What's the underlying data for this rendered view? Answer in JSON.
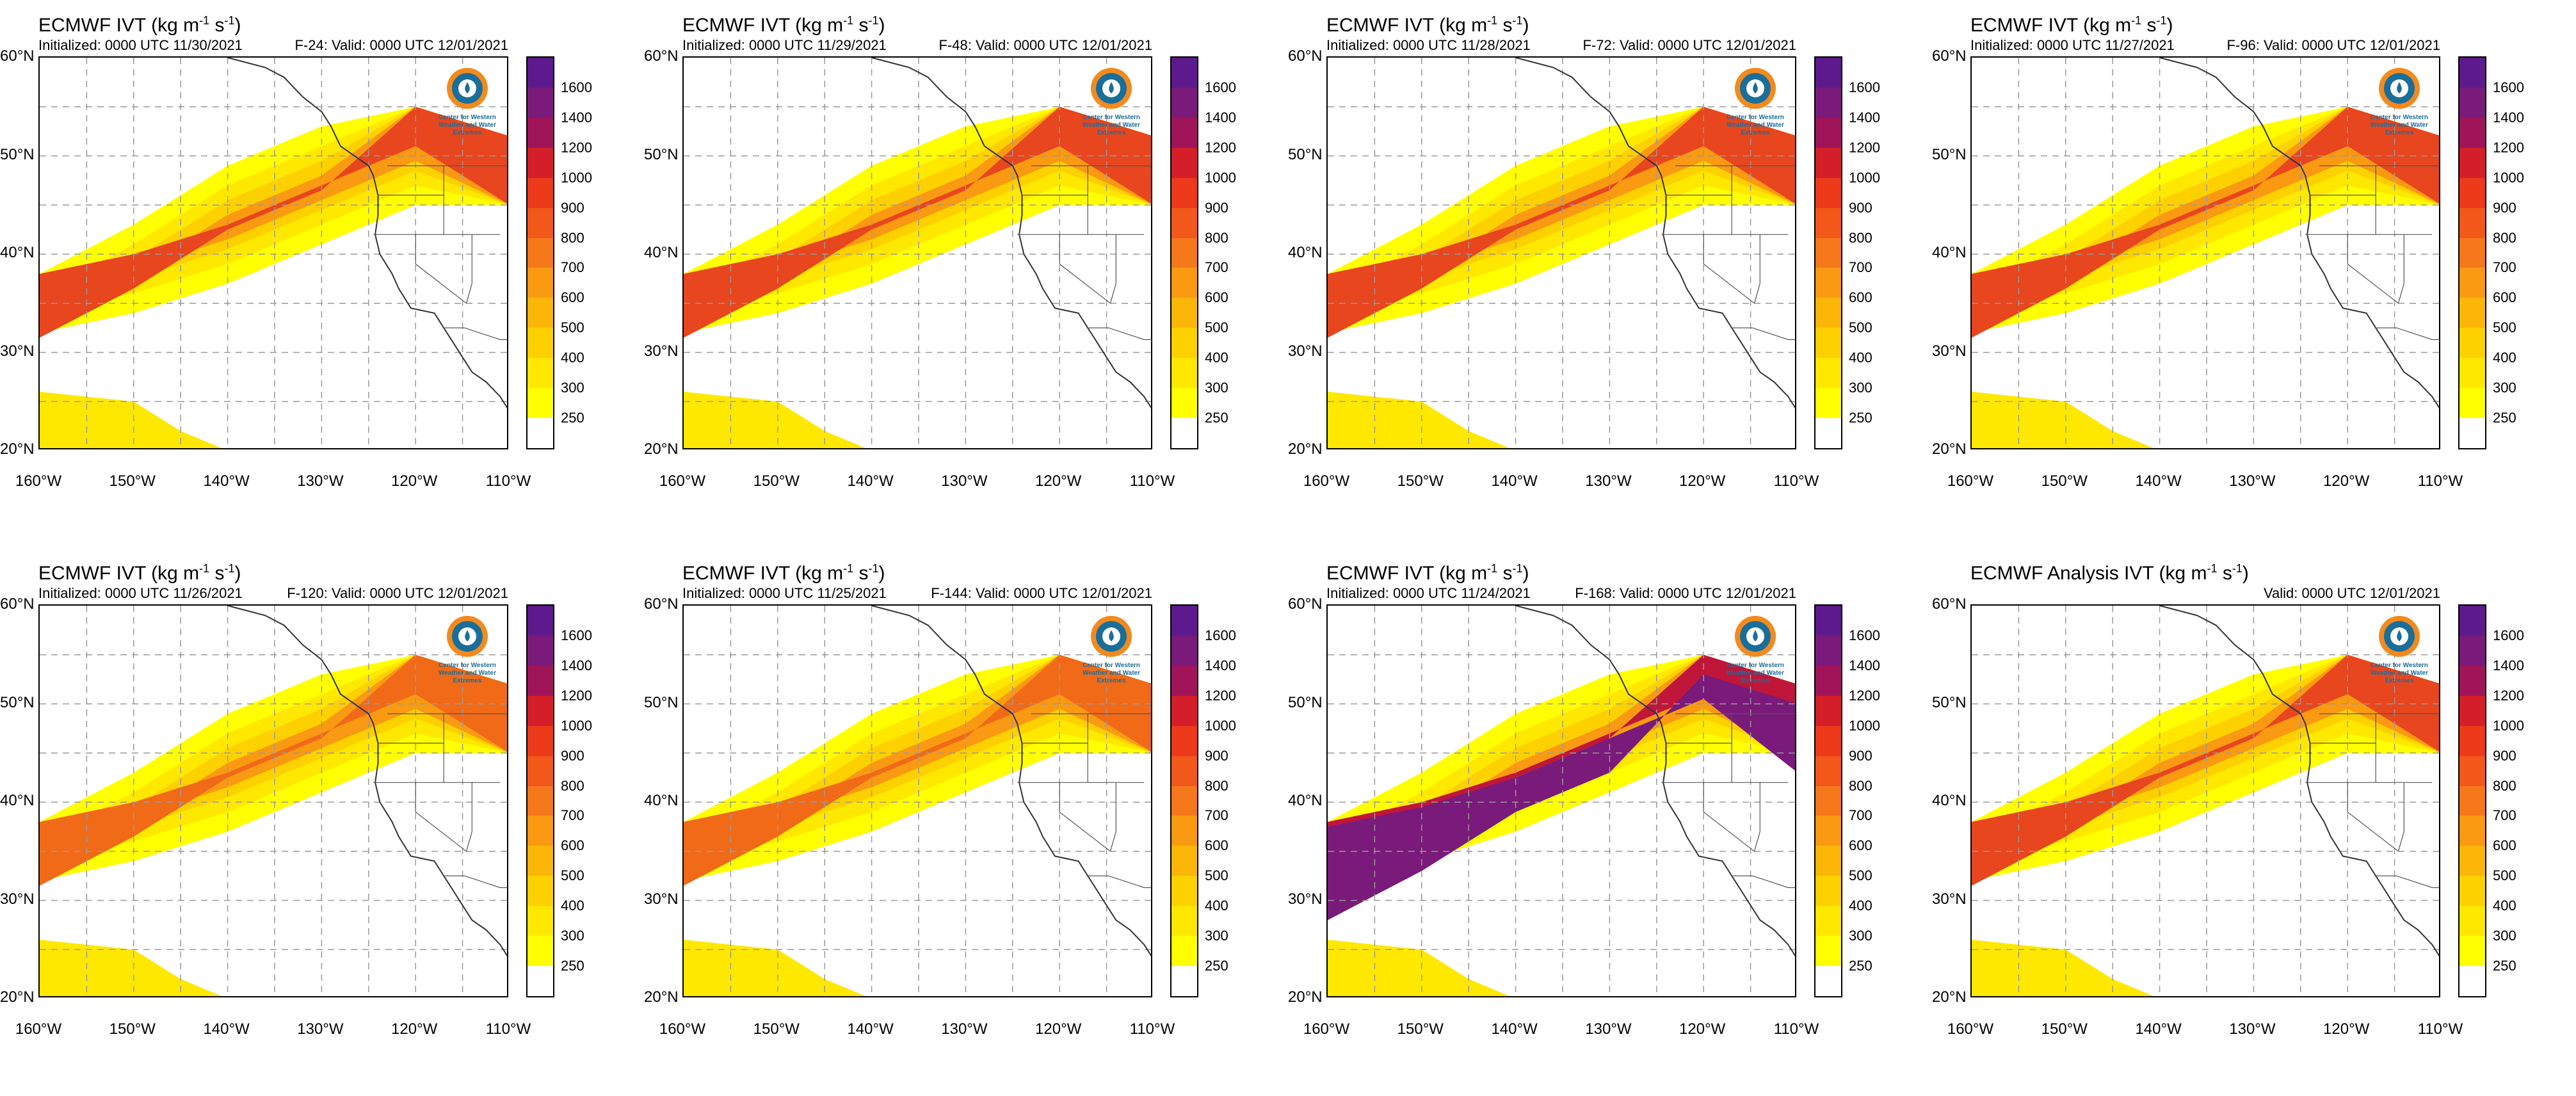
{
  "panels": [
    {
      "title": "ECMWF IVT (kg m",
      "title_unit_tail": ") ",
      "init": "Initialized: 0000 UTC 11/30/2021",
      "valid": "F-24: Valid: 0000 UTC 12/01/2021",
      "intensity": 0.55,
      "color": "#e8461e"
    },
    {
      "title": "ECMWF IVT (kg m",
      "title_unit_tail": ") ",
      "init": "Initialized: 0000 UTC 11/29/2021",
      "valid": "F-48: Valid: 0000 UTC 12/01/2021",
      "intensity": 0.5,
      "color": "#e8461e"
    },
    {
      "title": "ECMWF IVT (kg m",
      "title_unit_tail": ") ",
      "init": "Initialized: 0000 UTC 11/28/2021",
      "valid": "F-72: Valid: 0000 UTC 12/01/2021",
      "intensity": 0.55,
      "color": "#e8461e"
    },
    {
      "title": "ECMWF IVT (kg m",
      "title_unit_tail": ") ",
      "init": "Initialized: 0000 UTC 11/27/2021",
      "valid": "F-96: Valid: 0000 UTC 12/01/2021",
      "intensity": 0.55,
      "color": "#e8461e"
    },
    {
      "title": "ECMWF IVT (kg m",
      "title_unit_tail": ") ",
      "init": "Initialized: 0000 UTC 11/26/2021",
      "valid": "F-120: Valid: 0000 UTC 12/01/2021",
      "intensity": 0.45,
      "color": "#f06a18"
    },
    {
      "title": "ECMWF IVT (kg m",
      "title_unit_tail": ") ",
      "init": "Initialized: 0000 UTC 11/25/2021",
      "valid": "F-144: Valid: 0000 UTC 12/01/2021",
      "intensity": 0.45,
      "color": "#f06a18"
    },
    {
      "title": "ECMWF IVT (kg m",
      "title_unit_tail": ") ",
      "init": "Initialized: 0000 UTC 11/24/2021",
      "valid": "F-168: Valid: 0000 UTC 12/01/2021",
      "intensity": 0.9,
      "color": "#c0163a"
    },
    {
      "title": "ECMWF Analysis IVT (kg m",
      "title_unit_tail": ") ",
      "init": "",
      "valid": "Valid: 0000 UTC 12/01/2021",
      "intensity": 0.55,
      "color": "#e8461e"
    }
  ],
  "title_sup_1": "-1",
  "title_mid": "s",
  "title_sup_2": "-1",
  "y_ticks": [
    "60°N",
    "50°N",
    "40°N",
    "30°N",
    "20°N"
  ],
  "x_ticks": [
    "160°W",
    "150°W",
    "140°W",
    "130°W",
    "120°W",
    "110°W"
  ],
  "colorbar": {
    "labels": [
      "1600",
      "1400",
      "1200",
      "1000",
      "900",
      "800",
      "700",
      "600",
      "500",
      "400",
      "300",
      "250"
    ],
    "colors": [
      "#5c1a8c",
      "#7a1a7a",
      "#a0145a",
      "#d41e2a",
      "#ec3a1a",
      "#f2581a",
      "#f5781a",
      "#f99a12",
      "#fbb608",
      "#fdd000",
      "#ffe800",
      "#ffff00",
      "#ffffff"
    ]
  },
  "logo_text": "Center for Western Weather and Water Extremes"
}
